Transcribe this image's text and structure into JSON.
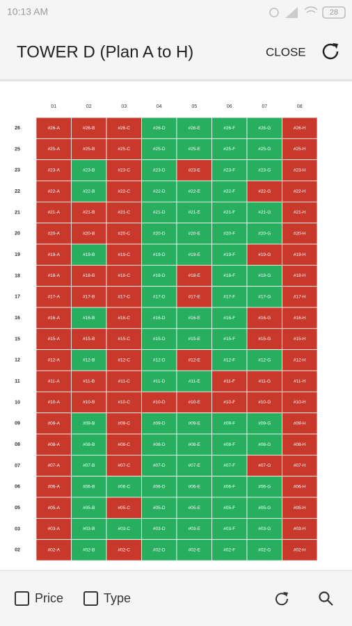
{
  "status_bar": {
    "time": "10:13 AM",
    "battery": "28"
  },
  "header": {
    "title": "TOWER D (Plan A to H)",
    "close": "CLOSE"
  },
  "grid": {
    "columns": [
      "01",
      "02",
      "03",
      "04",
      "05",
      "06",
      "07",
      "08"
    ],
    "rows": [
      {
        "label": "26",
        "units": [
          "#26-A",
          "#26-B",
          "#26-C",
          "#26-D",
          "#26-E",
          "#26-F",
          "#26-G",
          "#26-H"
        ],
        "colors": [
          "#c8392c",
          "#c8392c",
          "#c8392c",
          "#27ae5f",
          "#27ae5f",
          "#27ae5f",
          "#27ae5f",
          "#c8392c"
        ]
      },
      {
        "label": "25",
        "units": [
          "#25-A",
          "#25-B",
          "#25-C",
          "#25-D",
          "#25-E",
          "#25-F",
          "#25-G",
          "#25-H"
        ],
        "colors": [
          "#c8392c",
          "#c8392c",
          "#c8392c",
          "#27ae5f",
          "#27ae5f",
          "#27ae5f",
          "#27ae5f",
          "#c8392c"
        ]
      },
      {
        "label": "23",
        "units": [
          "#23-A",
          "#23-B",
          "#23-C",
          "#23-D",
          "#23-E",
          "#23-F",
          "#23-G",
          "#23-H"
        ],
        "colors": [
          "#c8392c",
          "#27ae5f",
          "#c8392c",
          "#27ae5f",
          "#c8392c",
          "#27ae5f",
          "#27ae5f",
          "#c8392c"
        ]
      },
      {
        "label": "22",
        "units": [
          "#22-A",
          "#22-B",
          "#22-C",
          "#22-D",
          "#22-E",
          "#22-F",
          "#22-G",
          "#22-H"
        ],
        "colors": [
          "#c8392c",
          "#27ae5f",
          "#c8392c",
          "#27ae5f",
          "#27ae5f",
          "#27ae5f",
          "#c8392c",
          "#c8392c"
        ]
      },
      {
        "label": "21",
        "units": [
          "#21-A",
          "#21-B",
          "#21-C",
          "#21-D",
          "#21-E",
          "#21-F",
          "#21-G",
          "#21-H"
        ],
        "colors": [
          "#c8392c",
          "#c8392c",
          "#c8392c",
          "#27ae5f",
          "#27ae5f",
          "#27ae5f",
          "#27ae5f",
          "#c8392c"
        ]
      },
      {
        "label": "20",
        "units": [
          "#20-A",
          "#20-B",
          "#20-C",
          "#20-D",
          "#20-E",
          "#20-F",
          "#20-G",
          "#20-H"
        ],
        "colors": [
          "#c8392c",
          "#c8392c",
          "#c8392c",
          "#27ae5f",
          "#27ae5f",
          "#27ae5f",
          "#27ae5f",
          "#c8392c"
        ]
      },
      {
        "label": "19",
        "units": [
          "#19-A",
          "#19-B",
          "#19-C",
          "#19-D",
          "#19-E",
          "#19-F",
          "#19-G",
          "#19-H"
        ],
        "colors": [
          "#c8392c",
          "#27ae5f",
          "#c8392c",
          "#27ae5f",
          "#27ae5f",
          "#27ae5f",
          "#c8392c",
          "#c8392c"
        ]
      },
      {
        "label": "18",
        "units": [
          "#18-A",
          "#18-B",
          "#18-C",
          "#18-D",
          "#18-E",
          "#18-F",
          "#18-G",
          "#18-H"
        ],
        "colors": [
          "#c8392c",
          "#c8392c",
          "#c8392c",
          "#27ae5f",
          "#c8392c",
          "#27ae5f",
          "#27ae5f",
          "#c8392c"
        ]
      },
      {
        "label": "17",
        "units": [
          "#17-A",
          "#17-B",
          "#17-C",
          "#17-D",
          "#17-E",
          "#17-F",
          "#17-G",
          "#17-H"
        ],
        "colors": [
          "#c8392c",
          "#c8392c",
          "#c8392c",
          "#27ae5f",
          "#c8392c",
          "#27ae5f",
          "#27ae5f",
          "#c8392c"
        ]
      },
      {
        "label": "16",
        "units": [
          "#16-A",
          "#16-B",
          "#16-C",
          "#16-D",
          "#16-E",
          "#16-F",
          "#16-G",
          "#16-H"
        ],
        "colors": [
          "#c8392c",
          "#27ae5f",
          "#c8392c",
          "#27ae5f",
          "#27ae5f",
          "#27ae5f",
          "#c8392c",
          "#c8392c"
        ]
      },
      {
        "label": "15",
        "units": [
          "#15-A",
          "#15-B",
          "#15-C",
          "#15-D",
          "#15-E",
          "#15-F",
          "#15-G",
          "#15-H"
        ],
        "colors": [
          "#c8392c",
          "#c8392c",
          "#c8392c",
          "#27ae5f",
          "#27ae5f",
          "#27ae5f",
          "#c8392c",
          "#c8392c"
        ]
      },
      {
        "label": "12",
        "units": [
          "#12-A",
          "#12-B",
          "#12-C",
          "#12-D",
          "#12-E",
          "#12-F",
          "#12-G",
          "#12-H"
        ],
        "colors": [
          "#c8392c",
          "#27ae5f",
          "#c8392c",
          "#27ae5f",
          "#c8392c",
          "#27ae5f",
          "#27ae5f",
          "#c8392c"
        ]
      },
      {
        "label": "11",
        "units": [
          "#11-A",
          "#11-B",
          "#11-C",
          "#11-D",
          "#11-E",
          "#11-F",
          "#11-G",
          "#11-H"
        ],
        "colors": [
          "#c8392c",
          "#c8392c",
          "#c8392c",
          "#27ae5f",
          "#27ae5f",
          "#c8392c",
          "#c8392c",
          "#c8392c"
        ]
      },
      {
        "label": "10",
        "units": [
          "#10-A",
          "#10-B",
          "#10-C",
          "#10-D",
          "#10-E",
          "#10-F",
          "#10-G",
          "#10-H"
        ],
        "colors": [
          "#c8392c",
          "#c8392c",
          "#c8392c",
          "#c8392c",
          "#c8392c",
          "#c8392c",
          "#c8392c",
          "#c8392c"
        ]
      },
      {
        "label": "09",
        "units": [
          "#09-A",
          "#09-B",
          "#09-C",
          "#09-D",
          "#09-E",
          "#09-F",
          "#09-G",
          "#09-H"
        ],
        "colors": [
          "#c8392c",
          "#27ae5f",
          "#c8392c",
          "#27ae5f",
          "#27ae5f",
          "#27ae5f",
          "#27ae5f",
          "#c8392c"
        ]
      },
      {
        "label": "08",
        "units": [
          "#08-A",
          "#08-B",
          "#08-C",
          "#08-D",
          "#08-E",
          "#08-F",
          "#08-G",
          "#08-H"
        ],
        "colors": [
          "#c8392c",
          "#27ae5f",
          "#c8392c",
          "#27ae5f",
          "#27ae5f",
          "#27ae5f",
          "#27ae5f",
          "#c8392c"
        ]
      },
      {
        "label": "07",
        "units": [
          "#07-A",
          "#07-B",
          "#07-C",
          "#07-D",
          "#07-E",
          "#07-F",
          "#07-G",
          "#07-H"
        ],
        "colors": [
          "#c8392c",
          "#27ae5f",
          "#c8392c",
          "#27ae5f",
          "#27ae5f",
          "#27ae5f",
          "#c8392c",
          "#c8392c"
        ]
      },
      {
        "label": "06",
        "units": [
          "#06-A",
          "#06-B",
          "#06-C",
          "#06-D",
          "#06-E",
          "#06-F",
          "#06-G",
          "#06-H"
        ],
        "colors": [
          "#c8392c",
          "#27ae5f",
          "#27ae5f",
          "#27ae5f",
          "#27ae5f",
          "#27ae5f",
          "#27ae5f",
          "#c8392c"
        ]
      },
      {
        "label": "05",
        "units": [
          "#05-A",
          "#05-B",
          "#05-C",
          "#05-D",
          "#05-E",
          "#05-F",
          "#05-G",
          "#05-H"
        ],
        "colors": [
          "#c8392c",
          "#27ae5f",
          "#c8392c",
          "#27ae5f",
          "#27ae5f",
          "#27ae5f",
          "#27ae5f",
          "#c8392c"
        ]
      },
      {
        "label": "03",
        "units": [
          "#03-A",
          "#03-B",
          "#03-C",
          "#03-D",
          "#03-E",
          "#03-F",
          "#03-G",
          "#03-H"
        ],
        "colors": [
          "#c8392c",
          "#27ae5f",
          "#27ae5f",
          "#27ae5f",
          "#27ae5f",
          "#27ae5f",
          "#27ae5f",
          "#c8392c"
        ]
      },
      {
        "label": "02",
        "units": [
          "#02-A",
          "#02-B",
          "#02-C",
          "#02-D",
          "#02-E",
          "#02-F",
          "#02-G",
          "#02-H"
        ],
        "colors": [
          "#c8392c",
          "#27ae5f",
          "#c8392c",
          "#27ae5f",
          "#27ae5f",
          "#27ae5f",
          "#27ae5f",
          "#c8392c"
        ]
      }
    ]
  },
  "footer": {
    "price": "Price",
    "type": "Type"
  }
}
